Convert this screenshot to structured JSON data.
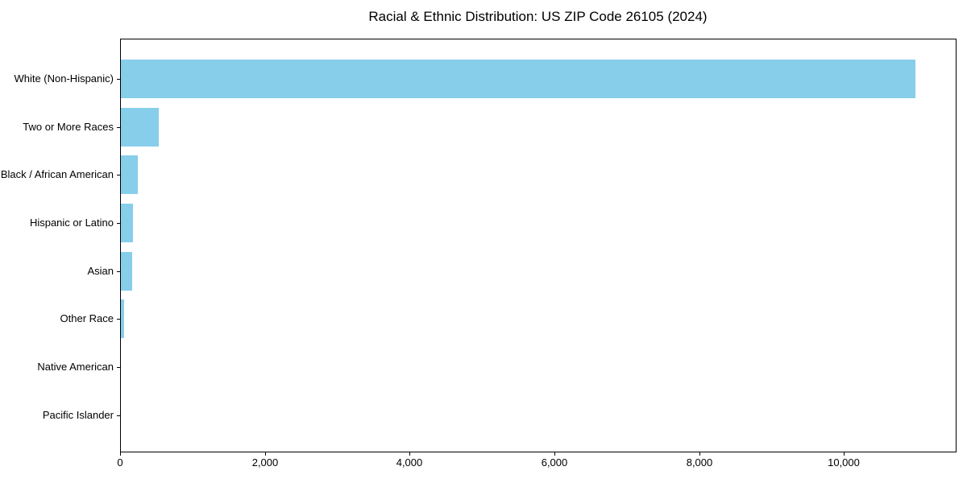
{
  "chart_data": {
    "type": "bar",
    "orientation": "horizontal",
    "title": "Racial & Ethnic Distribution: US ZIP Code 26105 (2024)",
    "categories": [
      "White (Non-Hispanic)",
      "Two or More Races",
      "Black / African American",
      "Hispanic or Latino",
      "Asian",
      "Other Race",
      "Native American",
      "Pacific Islander"
    ],
    "values": [
      10980,
      520,
      230,
      170,
      158,
      40,
      0,
      0
    ],
    "xlabel": "",
    "ylabel": "",
    "xlim": [
      0,
      11535
    ],
    "xticks": [
      0,
      2000,
      4000,
      6000,
      8000,
      10000
    ],
    "xtick_labels": [
      "0",
      "2,000",
      "4,000",
      "6,000",
      "8,000",
      "10,000"
    ],
    "bar_color": "#87CEEB",
    "axis_color": "#000000",
    "background_color": "#ffffff",
    "grid": false,
    "legend": "none"
  }
}
